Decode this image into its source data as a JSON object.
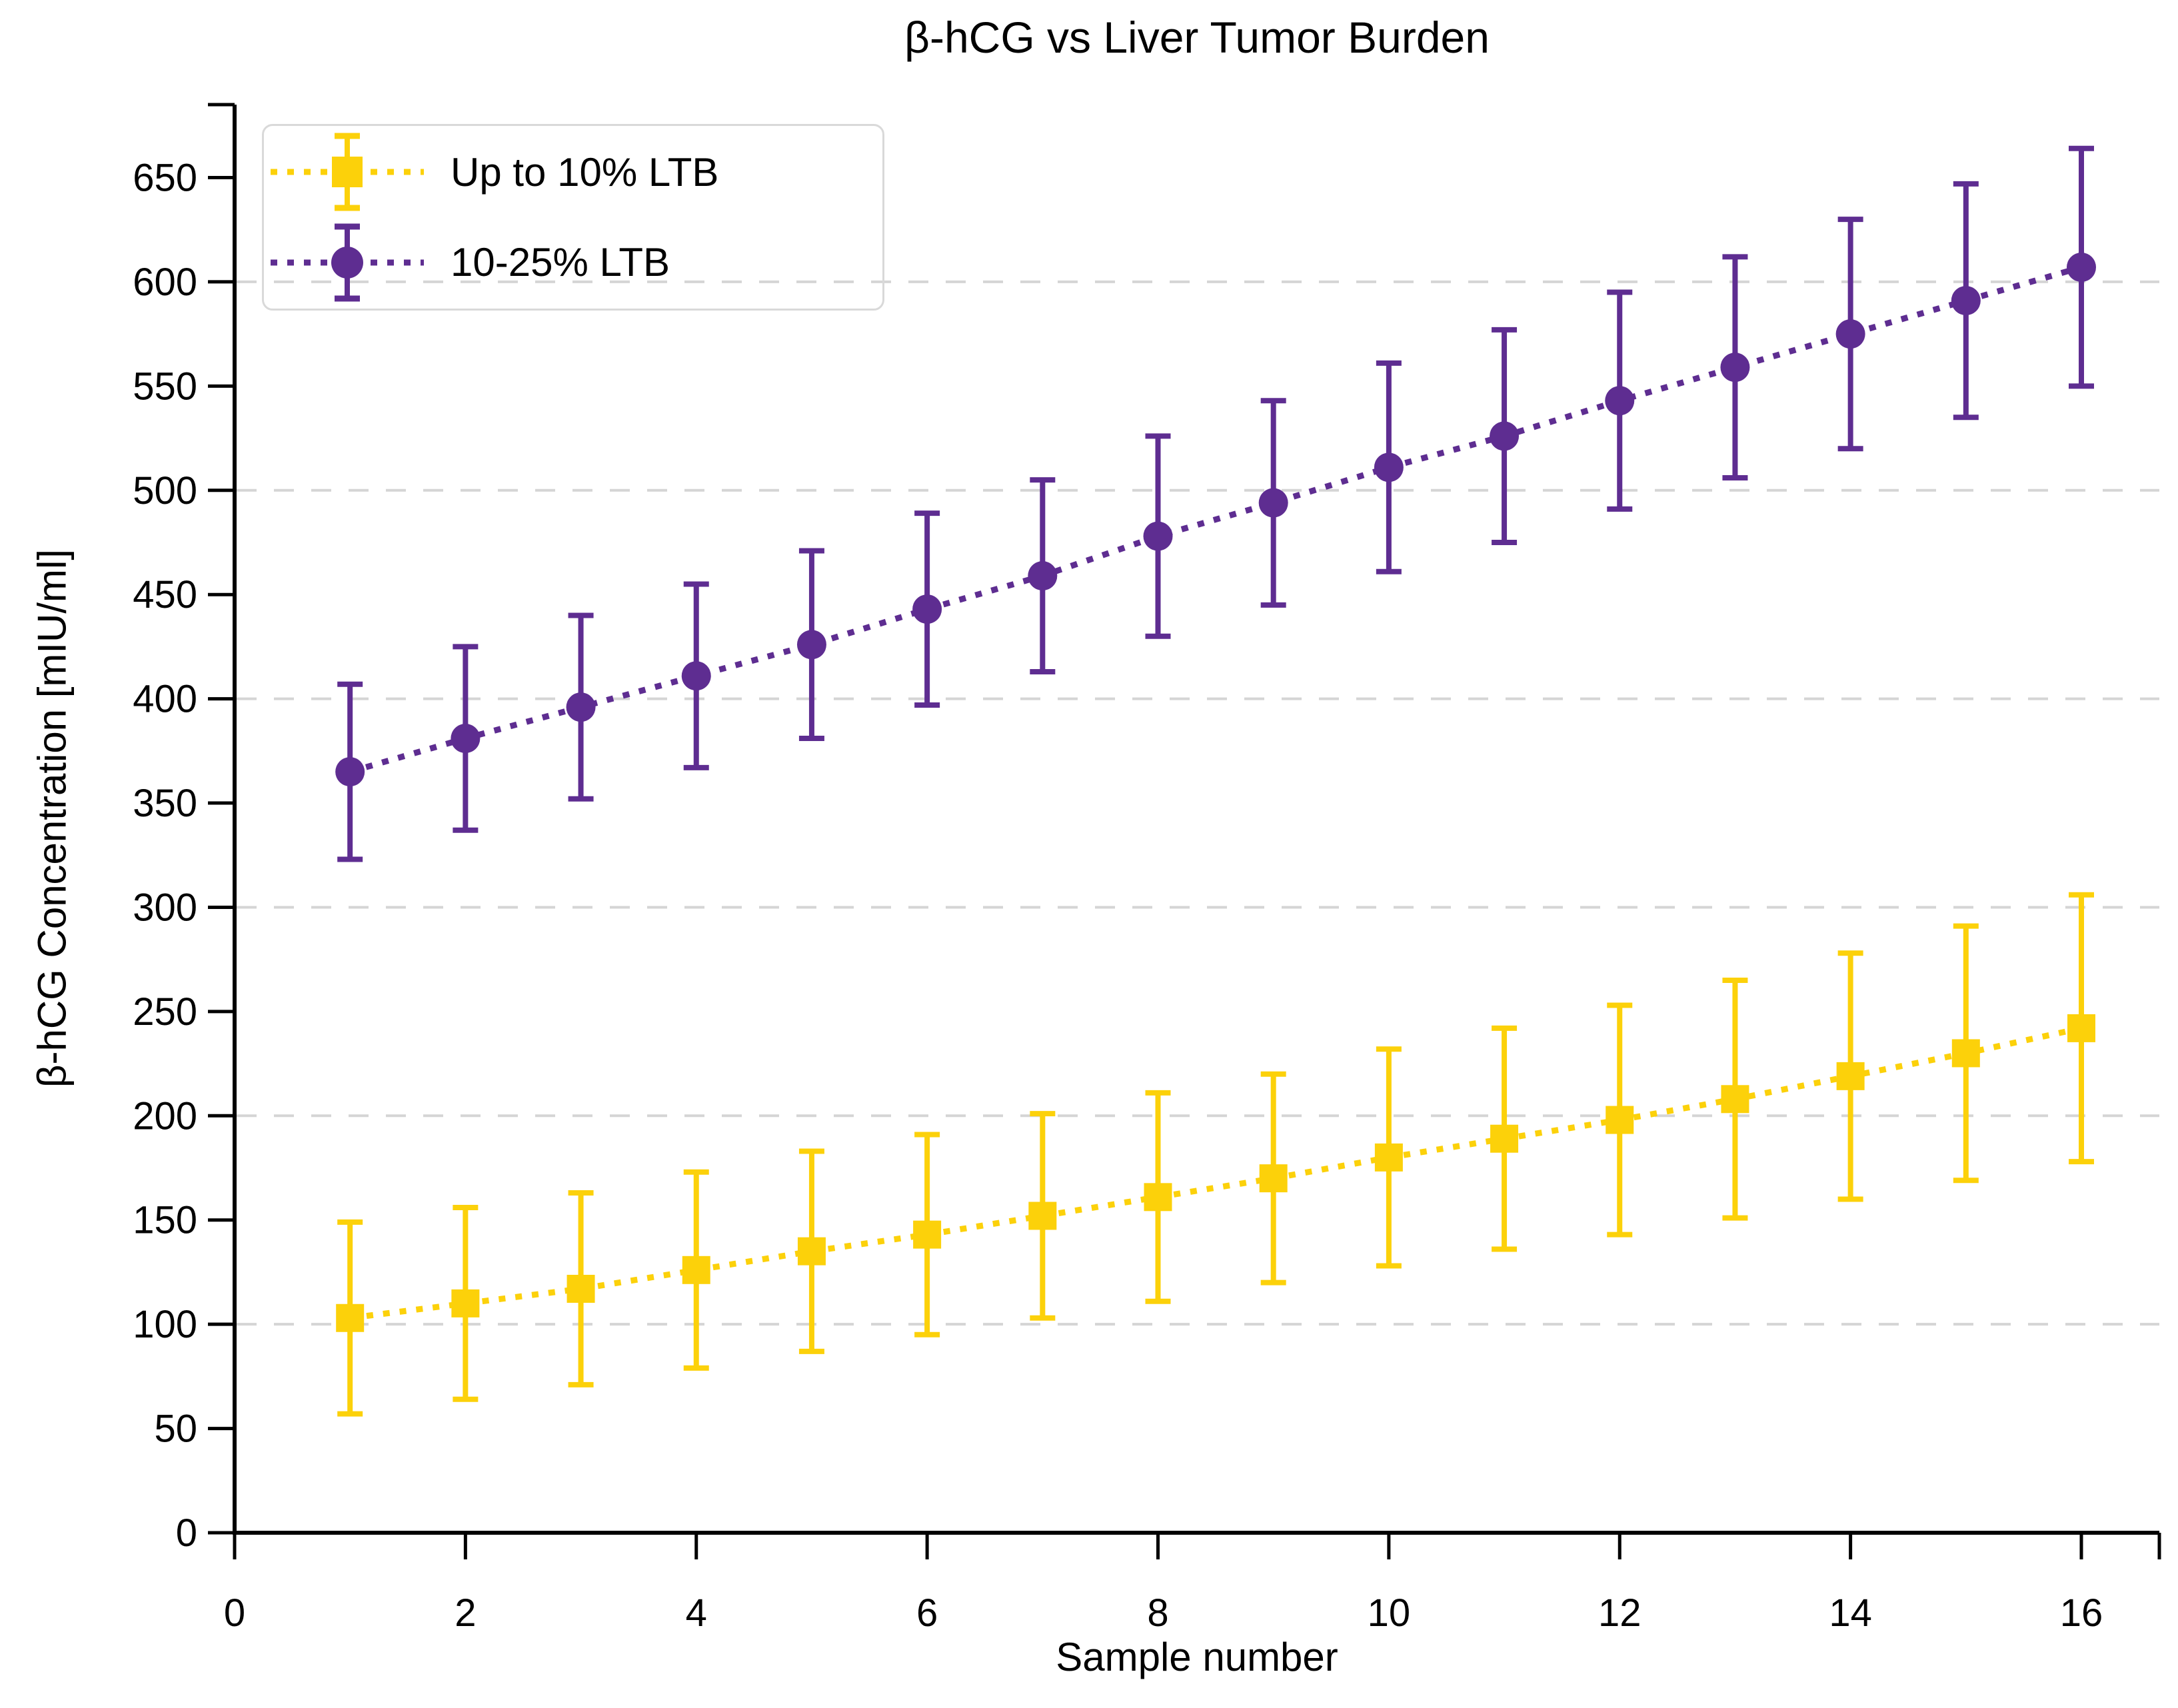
{
  "title": "β-hCG vs Liver Tumor Burden",
  "chart_data": {
    "type": "line",
    "subtype": "errorbar",
    "title": "β-hCG vs Liver Tumor Burden",
    "xlabel": "Sample number",
    "ylabel": "β-hCG Concentration [mIU/ml]",
    "x": [
      1,
      2,
      3,
      4,
      5,
      6,
      7,
      8,
      9,
      10,
      11,
      12,
      13,
      14,
      15,
      16
    ],
    "series": [
      {
        "name": "Up to 10% LTB",
        "color": "#FCD10A",
        "marker": "square",
        "line_style": "dotted",
        "values": [
          103,
          110,
          117,
          126,
          135,
          143,
          152,
          161,
          170,
          180,
          189,
          198,
          208,
          219,
          230,
          242
        ],
        "errors": [
          46,
          46,
          46,
          47,
          48,
          48,
          49,
          50,
          50,
          52,
          53,
          55,
          57,
          59,
          61,
          64
        ]
      },
      {
        "name": "10-25% LTB",
        "color": "#5E2D91",
        "marker": "circle",
        "line_style": "dotted",
        "values": [
          365,
          381,
          396,
          411,
          426,
          443,
          459,
          478,
          494,
          511,
          526,
          543,
          559,
          575,
          591,
          607
        ],
        "errors": [
          42,
          44,
          44,
          44,
          45,
          46,
          46,
          48,
          49,
          50,
          51,
          52,
          53,
          55,
          56,
          57
        ]
      }
    ],
    "xlim": [
      0,
      16.7
    ],
    "ylim": [
      0,
      685
    ],
    "xticks": [
      0,
      2,
      4,
      6,
      8,
      10,
      12,
      14,
      16
    ],
    "yticks": [
      0,
      50,
      100,
      150,
      200,
      250,
      300,
      350,
      400,
      450,
      500,
      550,
      600,
      650
    ],
    "gridlines_y": [
      100,
      200,
      300,
      400,
      500,
      600
    ],
    "grid": "horizontal dashed",
    "grid_color": "#d5d5d5",
    "axis_color": "#000000",
    "legend_position": "upper left",
    "legend_labels": [
      "Up to 10% LTB",
      "10-25% LTB"
    ]
  }
}
